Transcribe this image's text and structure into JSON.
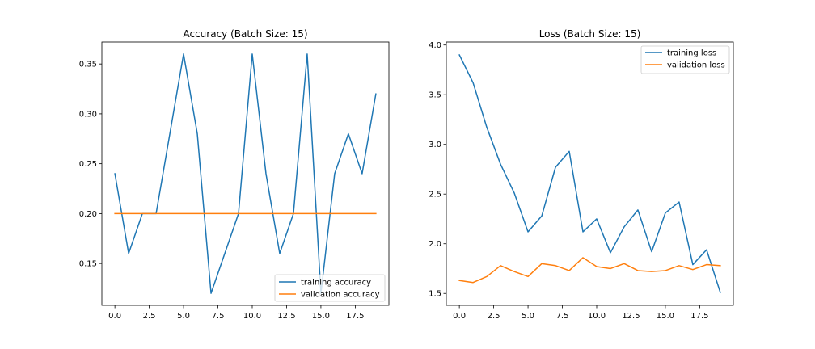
{
  "chart_data": [
    {
      "type": "line",
      "title": "Accuracy (Batch Size: 15)",
      "xlabel": "",
      "ylabel": "",
      "x": [
        0,
        1,
        2,
        3,
        4,
        5,
        6,
        7,
        8,
        9,
        10,
        11,
        12,
        13,
        14,
        15,
        16,
        17,
        18,
        19
      ],
      "xlim": [
        -0.95,
        19.95
      ],
      "ylim": [
        0.108,
        0.372
      ],
      "xticks": [
        0.0,
        2.5,
        5.0,
        7.5,
        10.0,
        12.5,
        15.0,
        17.5
      ],
      "xtick_labels": [
        "0.0",
        "2.5",
        "5.0",
        "7.5",
        "10.0",
        "12.5",
        "15.0",
        "17.5"
      ],
      "yticks": [
        0.15,
        0.2,
        0.25,
        0.3,
        0.35
      ],
      "ytick_labels": [
        "0.15",
        "0.20",
        "0.25",
        "0.30",
        "0.35"
      ],
      "grid": false,
      "legend_position": "lower-right",
      "series": [
        {
          "name": "training accuracy",
          "color": "#1f77b4",
          "values": [
            0.24,
            0.16,
            0.2,
            0.2,
            0.28,
            0.36,
            0.28,
            0.12,
            0.16,
            0.2,
            0.36,
            0.24,
            0.16,
            0.2,
            0.36,
            0.12,
            0.24,
            0.28,
            0.24,
            0.32
          ]
        },
        {
          "name": "validation accuracy",
          "color": "#ff7f0e",
          "values": [
            0.2,
            0.2,
            0.2,
            0.2,
            0.2,
            0.2,
            0.2,
            0.2,
            0.2,
            0.2,
            0.2,
            0.2,
            0.2,
            0.2,
            0.2,
            0.2,
            0.2,
            0.2,
            0.2,
            0.2
          ]
        }
      ]
    },
    {
      "type": "line",
      "title": "Loss (Batch Size: 15)",
      "xlabel": "",
      "ylabel": "",
      "x": [
        0,
        1,
        2,
        3,
        4,
        5,
        6,
        7,
        8,
        9,
        10,
        11,
        12,
        13,
        14,
        15,
        16,
        17,
        18,
        19
      ],
      "xlim": [
        -0.95,
        19.95
      ],
      "ylim": [
        1.38,
        4.03
      ],
      "xticks": [
        0.0,
        2.5,
        5.0,
        7.5,
        10.0,
        12.5,
        15.0,
        17.5
      ],
      "xtick_labels": [
        "0.0",
        "2.5",
        "5.0",
        "7.5",
        "10.0",
        "12.5",
        "15.0",
        "17.5"
      ],
      "yticks": [
        1.5,
        2.0,
        2.5,
        3.0,
        3.5,
        4.0
      ],
      "ytick_labels": [
        "1.5",
        "2.0",
        "2.5",
        "3.0",
        "3.5",
        "4.0"
      ],
      "grid": false,
      "legend_position": "upper-right",
      "series": [
        {
          "name": "training loss",
          "color": "#1f77b4",
          "values": [
            3.9,
            3.62,
            3.17,
            2.8,
            2.51,
            2.12,
            2.28,
            2.77,
            2.93,
            2.12,
            2.25,
            1.91,
            2.17,
            2.34,
            1.92,
            2.31,
            2.42,
            1.79,
            1.94,
            1.51
          ]
        },
        {
          "name": "validation loss",
          "color": "#ff7f0e",
          "values": [
            1.63,
            1.61,
            1.67,
            1.78,
            1.72,
            1.67,
            1.8,
            1.78,
            1.73,
            1.86,
            1.77,
            1.75,
            1.8,
            1.73,
            1.72,
            1.73,
            1.78,
            1.74,
            1.79,
            1.78
          ]
        }
      ]
    }
  ]
}
